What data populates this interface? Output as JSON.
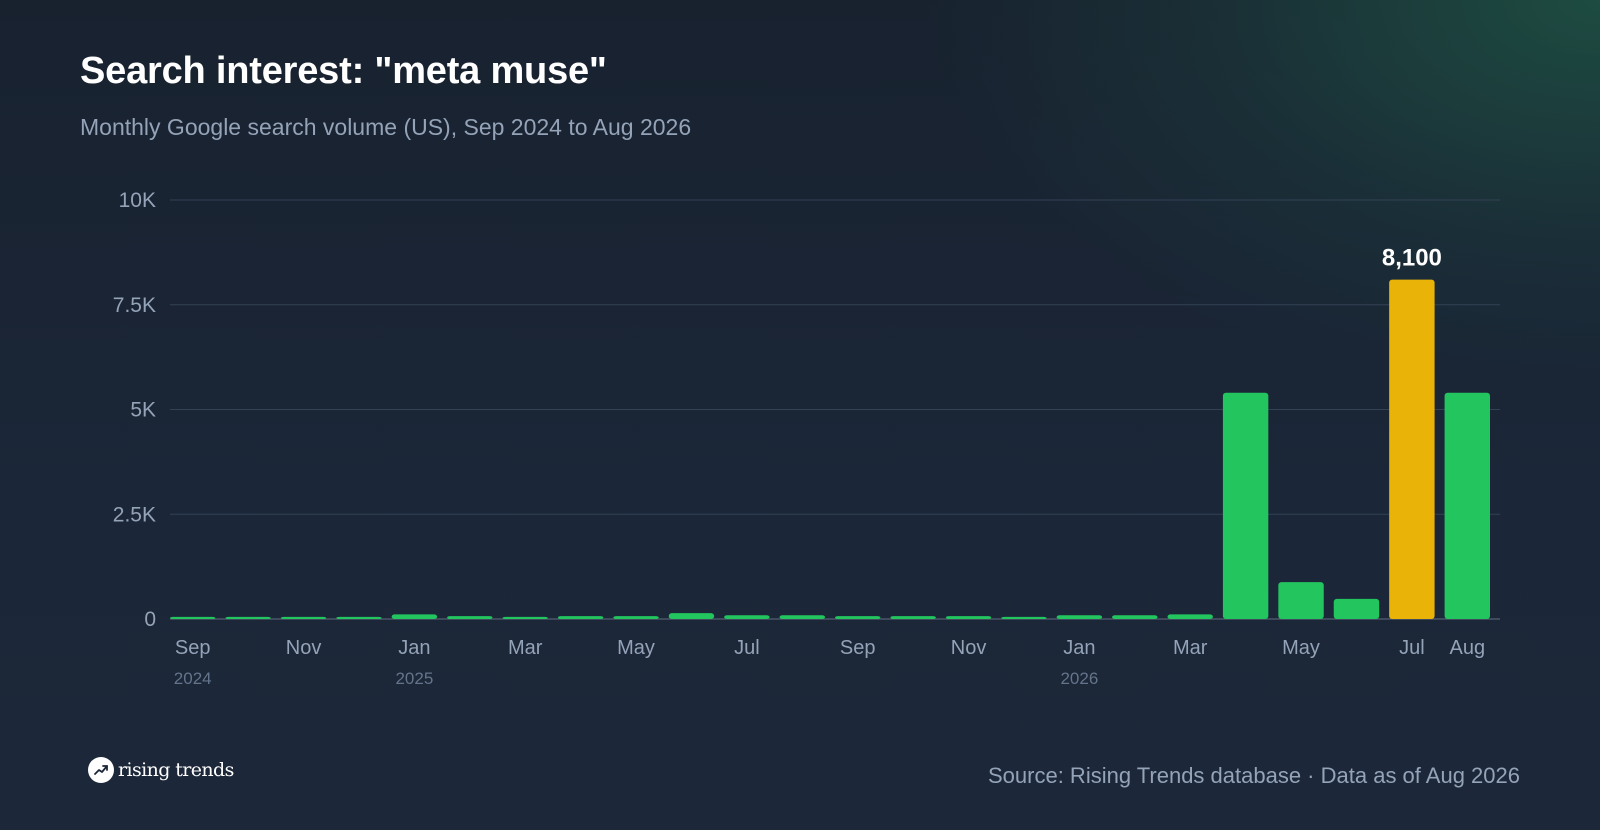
{
  "header": {
    "title": "Search interest: \"meta muse\"",
    "subtitle": "Monthly Google search volume (US), Sep 2024 to Aug 2026"
  },
  "footer": {
    "logo_text": "rising trends",
    "source": "Source: Rising Trends database · Data as of Aug 2026"
  },
  "colors": {
    "bar": "#22c55e",
    "highlight": "#eab308",
    "grid": "#334155",
    "axis_label": "#94a3b8",
    "year_label": "#64748b"
  },
  "chart_data": {
    "type": "bar",
    "title": "Search interest: \"meta muse\"",
    "subtitle": "Monthly Google search volume (US), Sep 2024 to Aug 2026",
    "categories": [
      "Sep 2024",
      "Oct 2024",
      "Nov 2024",
      "Dec 2024",
      "Jan 2025",
      "Feb 2025",
      "Mar 2025",
      "Apr 2025",
      "May 2025",
      "Jun 2025",
      "Jul 2025",
      "Aug 2025",
      "Sep 2025",
      "Oct 2025",
      "Nov 2025",
      "Dec 2025",
      "Jan 2026",
      "Feb 2026",
      "Mar 2026",
      "Apr 2026",
      "May 2026",
      "Jun 2026",
      "Jul 2026",
      "Aug 2026"
    ],
    "values": [
      50,
      50,
      50,
      50,
      110,
      70,
      50,
      70,
      70,
      140,
      90,
      90,
      70,
      70,
      70,
      50,
      90,
      90,
      110,
      5400,
      880,
      480,
      8100,
      5400
    ],
    "x_tick_labels": [
      {
        "index": 0,
        "label": "Sep",
        "year": "2024"
      },
      {
        "index": 2,
        "label": "Nov"
      },
      {
        "index": 4,
        "label": "Jan",
        "year": "2025"
      },
      {
        "index": 6,
        "label": "Mar"
      },
      {
        "index": 8,
        "label": "May"
      },
      {
        "index": 10,
        "label": "Jul"
      },
      {
        "index": 12,
        "label": "Sep"
      },
      {
        "index": 14,
        "label": "Nov"
      },
      {
        "index": 16,
        "label": "Jan",
        "year": "2026"
      },
      {
        "index": 18,
        "label": "Mar"
      },
      {
        "index": 20,
        "label": "May"
      },
      {
        "index": 22,
        "label": "Jul"
      },
      {
        "index": 23,
        "label": "Aug"
      }
    ],
    "y_ticks": [
      {
        "value": 0,
        "label": "0"
      },
      {
        "value": 2500,
        "label": "2.5K"
      },
      {
        "value": 5000,
        "label": "5K"
      },
      {
        "value": 7500,
        "label": "7.5K"
      },
      {
        "value": 10000,
        "label": "10K"
      }
    ],
    "ylim": [
      0,
      10000
    ],
    "grid": true,
    "highlight_index": 22,
    "highlight_label": "8,100",
    "xlabel": "",
    "ylabel": ""
  }
}
